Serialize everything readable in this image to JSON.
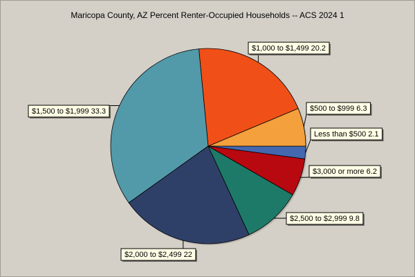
{
  "title": "Maricopa County, AZ Percent Renter-Occupied Households -- ACS 2024 1",
  "chart_data": {
    "type": "pie",
    "title": "Maricopa County, AZ Percent Renter-Occupied Households -- ACS 2024 1",
    "legend": "none",
    "slices": [
      {
        "label": "Less than $500",
        "value": 2.1,
        "display": "Less than $500 2.1",
        "color": "#4468b0"
      },
      {
        "label": "$500 to $999",
        "value": 6.3,
        "display": "$500 to $999 6.3",
        "color": "#f4a03c"
      },
      {
        "label": "$1,000 to $1,499",
        "value": 20.2,
        "display": "$1,000 to $1,499 20.2",
        "color": "#f05018"
      },
      {
        "label": "$1,500 to $1,999",
        "value": 33.3,
        "display": "$1,500 to $1,999 33.3",
        "color": "#5299a9"
      },
      {
        "label": "$2,000 to $2,499",
        "value": 22,
        "display": "$2,000 to $2,499 22",
        "color": "#2f4068"
      },
      {
        "label": "$2,500 to $2,999",
        "value": 9.8,
        "display": "$2,500 to $2,999 9.8",
        "color": "#1e7a68"
      },
      {
        "label": "$3,000 or more",
        "value": 6.2,
        "display": "$3,000 or more 6.2",
        "color": "#b80810"
      }
    ]
  }
}
